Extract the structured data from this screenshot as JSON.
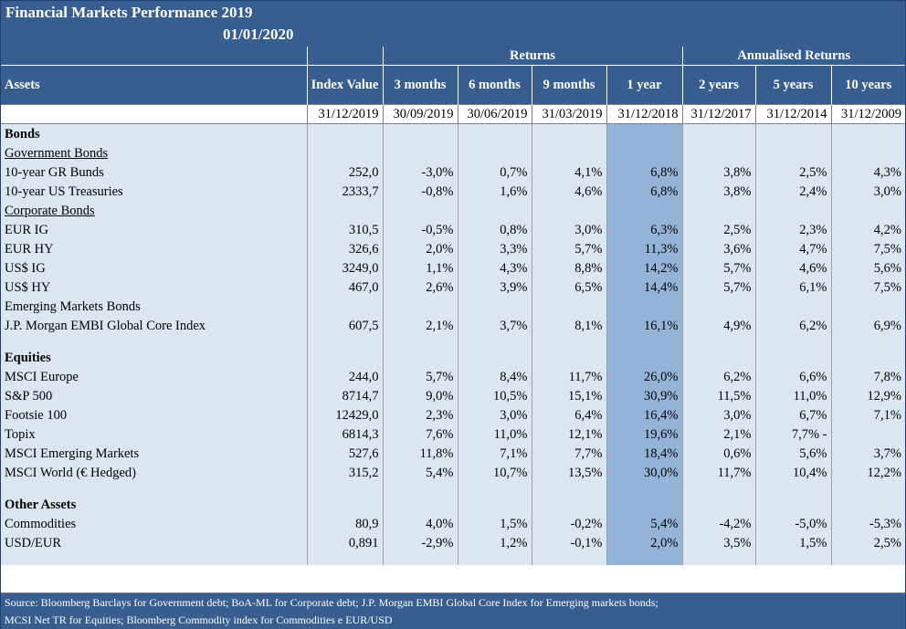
{
  "title": "Financial Markets Performance 2019",
  "date": "01/01/2020",
  "header": {
    "returns": "Returns",
    "annualised": "Annualised Returns",
    "assets": "Assets",
    "index_value": "Index Value",
    "cols": [
      "3 months",
      "6 months",
      "9 months",
      "1 year",
      "2 years",
      "5 years",
      "10 years"
    ],
    "dates": [
      "31/12/2019",
      "30/09/2019",
      "30/06/2019",
      "31/03/2019",
      "31/12/2018",
      "31/12/2017",
      "31/12/2014",
      "31/12/2009"
    ]
  },
  "rows": [
    {
      "label": "Bonds",
      "kind": "section",
      "values": [
        "",
        "",
        "",
        "",
        "",
        "",
        "",
        ""
      ]
    },
    {
      "label": "Government Bonds",
      "kind": "sub",
      "values": [
        "",
        "",
        "",
        "",
        "",
        "",
        "",
        ""
      ]
    },
    {
      "label": "10-year GR Bunds",
      "kind": "item",
      "values": [
        "252,0",
        "-3,0%",
        "0,7%",
        "4,1%",
        "6,8%",
        "3,8%",
        "2,5%",
        "4,3%"
      ]
    },
    {
      "label": "10-year US Treasuries",
      "kind": "item",
      "values": [
        "2333,7",
        "-0,8%",
        "1,6%",
        "4,6%",
        "6,8%",
        "3,8%",
        "2,4%",
        "3,0%"
      ]
    },
    {
      "label": "Corporate Bonds",
      "kind": "sub",
      "values": [
        "",
        "",
        "",
        "",
        "",
        "",
        "",
        ""
      ]
    },
    {
      "label": "EUR IG",
      "kind": "ind",
      "values": [
        "310,5",
        "-0,5%",
        "0,8%",
        "3,0%",
        "6,3%",
        "2,5%",
        "2,3%",
        "4,2%"
      ]
    },
    {
      "label": "EUR HY",
      "kind": "ind",
      "values": [
        "326,6",
        "2,0%",
        "3,3%",
        "5,7%",
        "11,3%",
        "3,6%",
        "4,7%",
        "7,5%"
      ]
    },
    {
      "label": "US$ IG",
      "kind": "ind",
      "values": [
        "3249,0",
        "1,1%",
        "4,3%",
        "8,8%",
        "14,2%",
        "5,7%",
        "4,6%",
        "5,6%"
      ]
    },
    {
      "label": "US$ HY",
      "kind": "ind",
      "values": [
        "467,0",
        "2,6%",
        "3,9%",
        "6,5%",
        "14,4%",
        "5,7%",
        "6,1%",
        "7,5%"
      ]
    },
    {
      "label": "Emerging Markets Bonds",
      "kind": "item",
      "values": [
        "",
        "",
        "",
        "",
        "",
        "",
        "",
        ""
      ]
    },
    {
      "label": "J.P. Morgan EMBI Global Core Index",
      "kind": "item",
      "values": [
        "607,5",
        "2,1%",
        "3,7%",
        "8,1%",
        "16,1%",
        "4,9%",
        "6,2%",
        "6,9%"
      ]
    },
    {
      "label": "",
      "kind": "spacer",
      "values": [
        "",
        "",
        "",
        "",
        "",
        "",
        "",
        ""
      ]
    },
    {
      "label": "Equities",
      "kind": "section",
      "values": [
        "",
        "",
        "",
        "",
        "",
        "",
        "",
        ""
      ]
    },
    {
      "label": "MSCI Europe",
      "kind": "item",
      "values": [
        "244,0",
        "5,7%",
        "8,4%",
        "11,7%",
        "26,0%",
        "6,2%",
        "6,6%",
        "7,8%"
      ]
    },
    {
      "label": "S&P 500",
      "kind": "item",
      "values": [
        "8714,7",
        "9,0%",
        "10,5%",
        "15,1%",
        "30,9%",
        "11,5%",
        "11,0%",
        "12,9%"
      ]
    },
    {
      "label": "Footsie 100",
      "kind": "item",
      "values": [
        "12429,0",
        "2,3%",
        "3,0%",
        "6,4%",
        "16,4%",
        "3,0%",
        "6,7%",
        "7,1%"
      ]
    },
    {
      "label": "Topix",
      "kind": "item",
      "values": [
        "6814,3",
        "7,6%",
        "11,0%",
        "12,1%",
        "19,6%",
        "2,1%",
        "7,7% -",
        ""
      ]
    },
    {
      "label": "MSCI Emerging Markets",
      "kind": "item",
      "values": [
        "527,6",
        "11,8%",
        "7,1%",
        "7,7%",
        "18,4%",
        "0,6%",
        "5,6%",
        "3,7%"
      ]
    },
    {
      "label": "MSCI World (€ Hedged)",
      "kind": "item",
      "values": [
        "315,2",
        "5,4%",
        "10,7%",
        "13,5%",
        "30,0%",
        "11,7%",
        "10,4%",
        "12,2%"
      ]
    },
    {
      "label": "",
      "kind": "spacer",
      "values": [
        "",
        "",
        "",
        "",
        "",
        "",
        "",
        ""
      ]
    },
    {
      "label": "Other Assets",
      "kind": "section",
      "values": [
        "",
        "",
        "",
        "",
        "",
        "",
        "",
        ""
      ]
    },
    {
      "label": "Commodities",
      "kind": "ind",
      "values": [
        "80,9",
        "4,0%",
        "1,5%",
        "-0,2%",
        "5,4%",
        "-4,2%",
        "-5,0%",
        "-5,3%"
      ]
    },
    {
      "label": "USD/EUR",
      "kind": "ind",
      "values": [
        "0,891",
        "-2,9%",
        "1,2%",
        "-0,1%",
        "2,0%",
        "3,5%",
        "1,5%",
        "2,5%"
      ]
    },
    {
      "label": "",
      "kind": "spacer",
      "values": [
        "",
        "",
        "",
        "",
        "",
        "",
        "",
        ""
      ]
    }
  ],
  "source_line1": "Source: Bloomberg Barclays for Government debt; BoA-ML for Corporate debt; J.P. Morgan EMBI Global Core Index for Emerging markets bonds;",
  "source_line2": "MCSI Net TR for Equities; Bloomberg Commodity index for Commodities e EUR/USD",
  "colors": {
    "header": "#385d8f",
    "cell": "#dce6f1",
    "highlight": "#95b3d7"
  }
}
